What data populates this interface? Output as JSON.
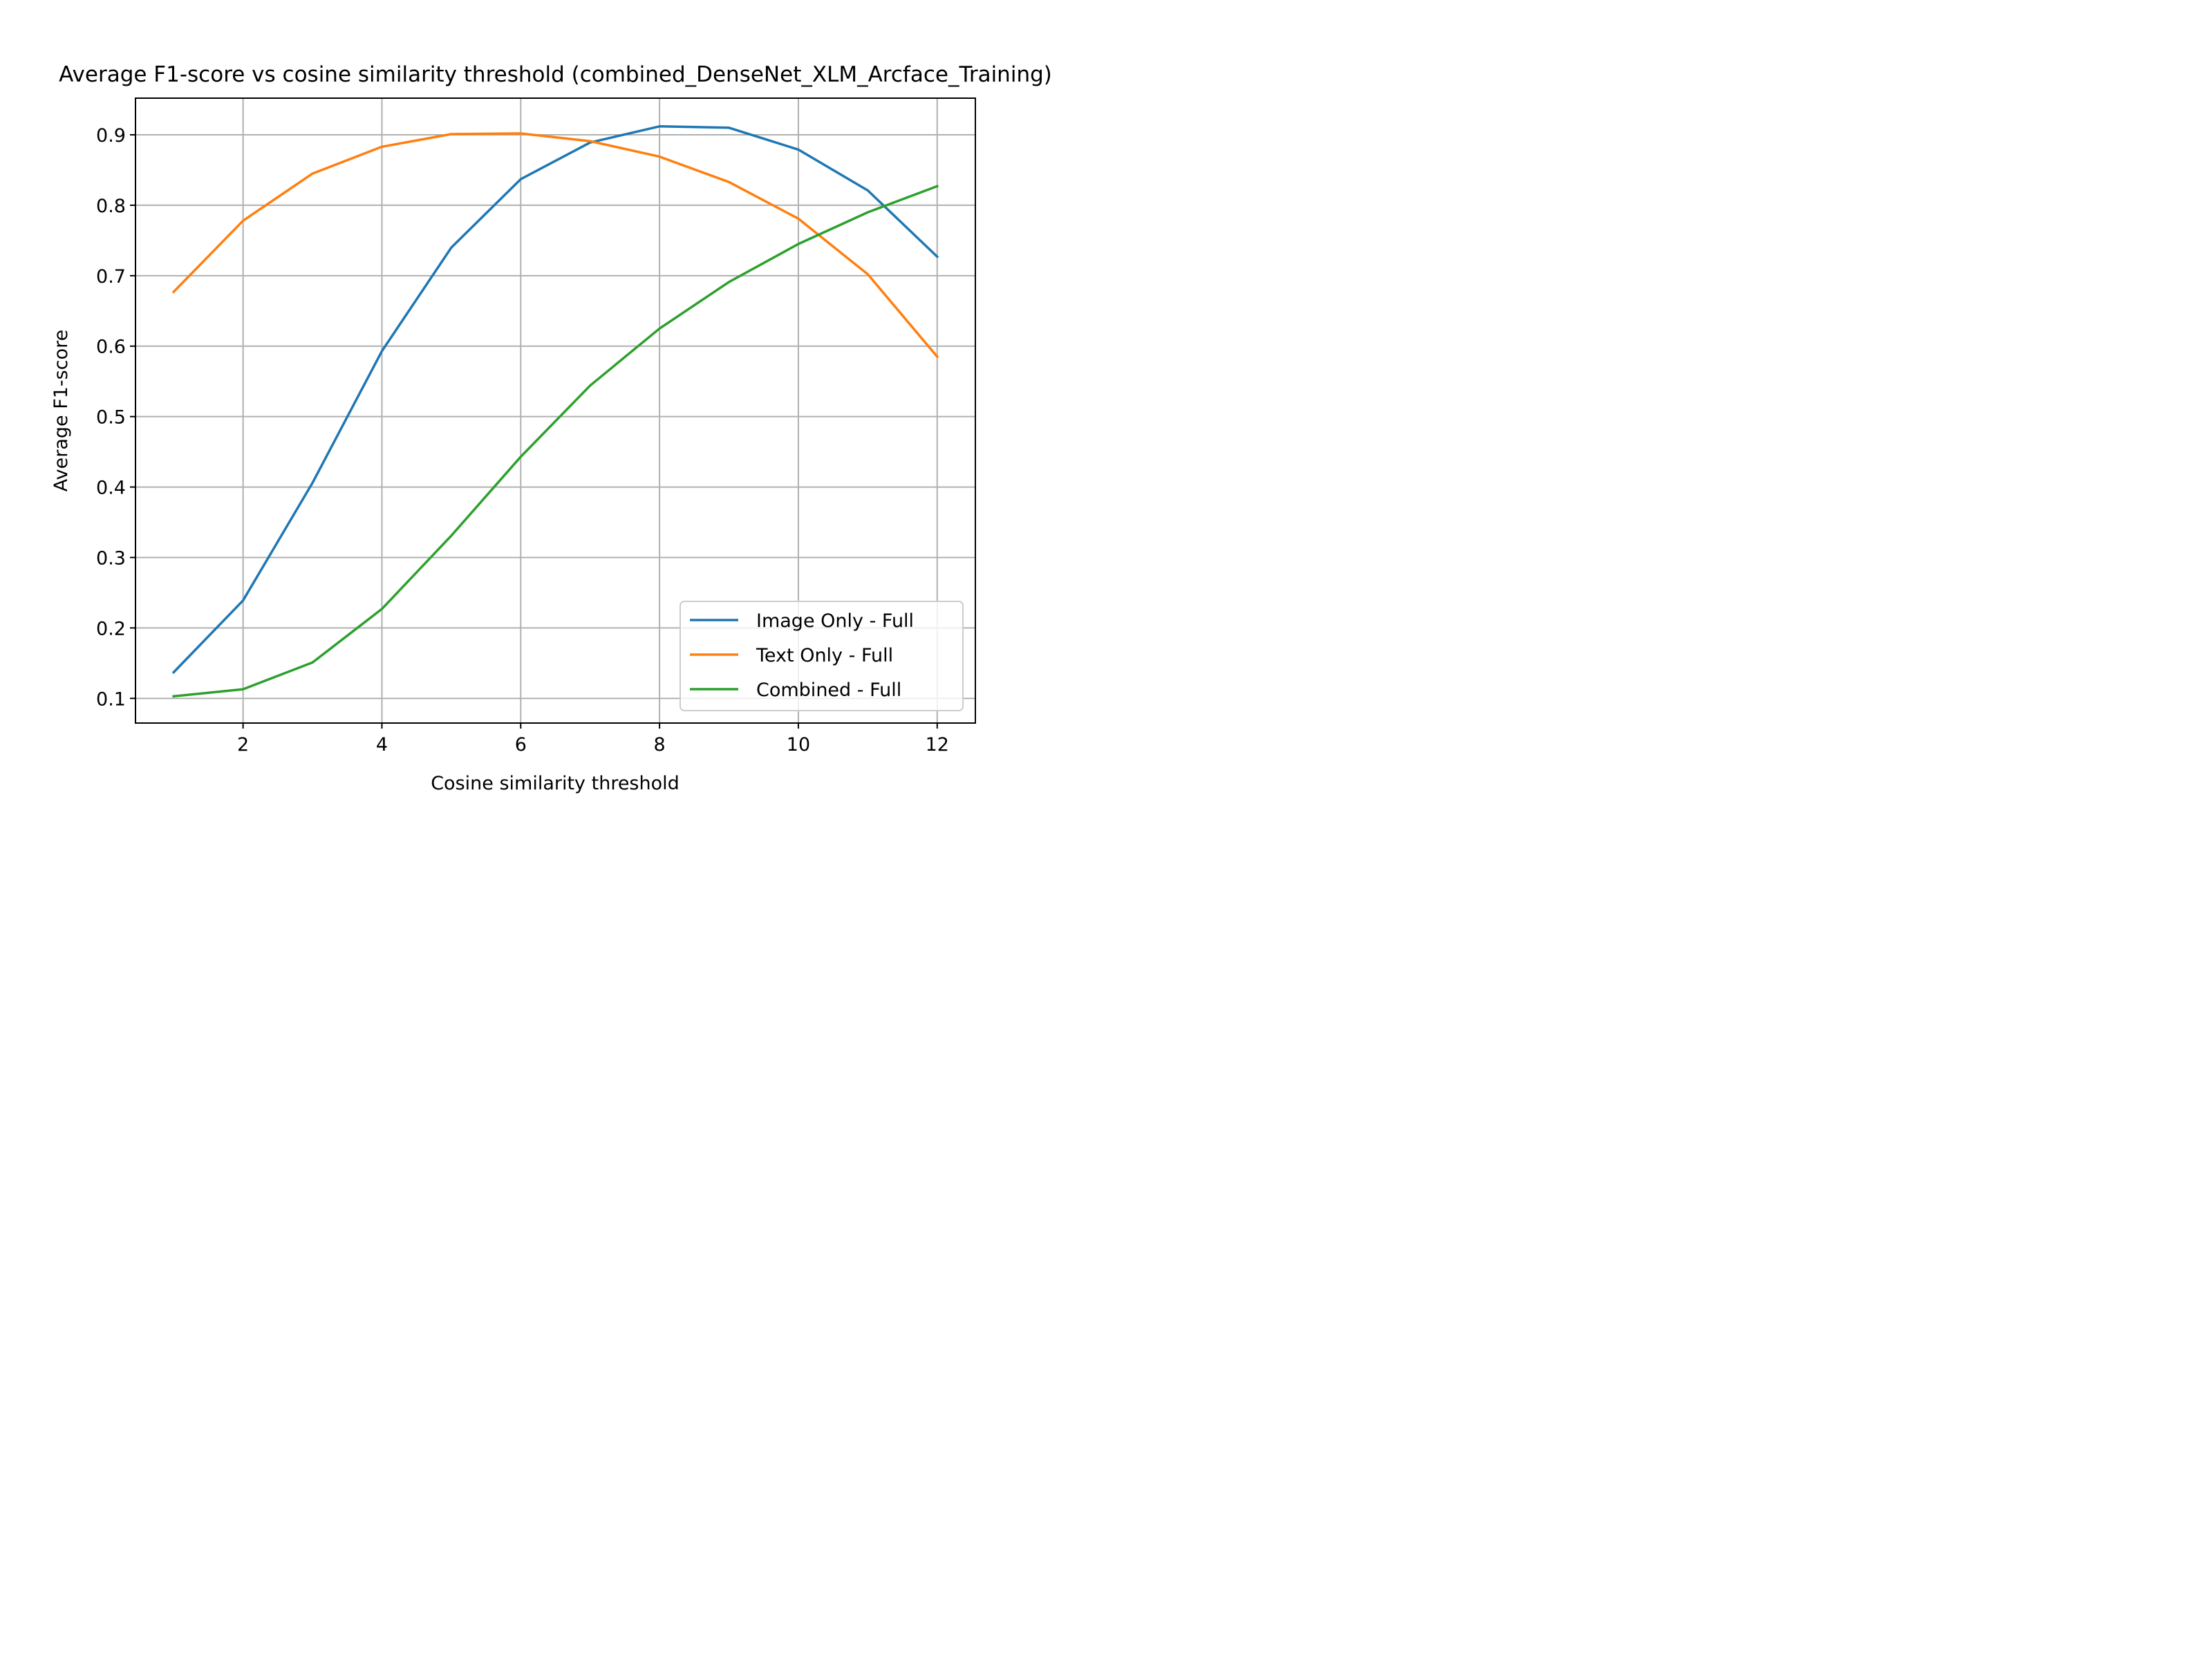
{
  "chart_data": {
    "type": "line",
    "title": "Average F1-score vs cosine similarity threshold (combined_DenseNet_XLM_Arcface_Training)",
    "xlabel": "Cosine similarity threshold",
    "ylabel": "Average F1-score",
    "x": [
      1,
      2,
      3,
      4,
      5,
      6,
      7,
      8,
      9,
      10,
      11,
      12
    ],
    "xlim": [
      0.45,
      12.55
    ],
    "ylim": [
      0.065,
      0.952
    ],
    "xticks": [
      2,
      4,
      6,
      8,
      10,
      12
    ],
    "yticks": [
      0.1,
      0.2,
      0.3,
      0.4,
      0.5,
      0.6,
      0.7,
      0.8,
      0.9
    ],
    "grid": true,
    "legend_position": "lower right",
    "series": [
      {
        "name": "Image Only - Full",
        "color": "#1f77b4",
        "values": [
          0.137,
          0.239,
          0.406,
          0.593,
          0.74,
          0.837,
          0.889,
          0.912,
          0.91,
          0.879,
          0.821,
          0.727
        ]
      },
      {
        "name": "Text Only - Full",
        "color": "#ff7f0e",
        "values": [
          0.677,
          0.778,
          0.845,
          0.883,
          0.901,
          0.902,
          0.891,
          0.869,
          0.833,
          0.781,
          0.702,
          0.585
        ]
      },
      {
        "name": "Combined - Full",
        "color": "#2ca02c",
        "values": [
          0.103,
          0.113,
          0.151,
          0.227,
          0.331,
          0.443,
          0.544,
          0.625,
          0.691,
          0.745,
          0.79,
          0.827
        ]
      }
    ]
  }
}
